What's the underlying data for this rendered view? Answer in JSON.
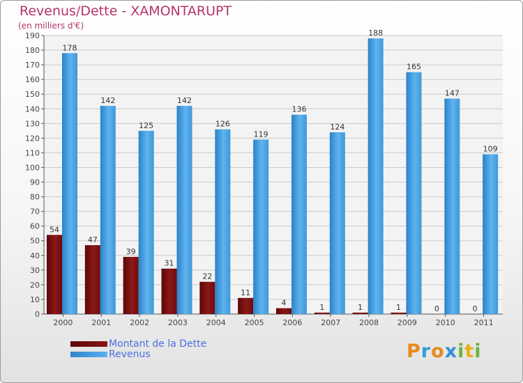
{
  "chart_data": {
    "type": "bar",
    "title": "Revenus/Dette - XAMONTARUPT",
    "subtitle": "(en milliers d'€)",
    "categories": [
      "2000",
      "2001",
      "2002",
      "2003",
      "2004",
      "2005",
      "2006",
      "2007",
      "2008",
      "2009",
      "2010",
      "2011"
    ],
    "series": [
      {
        "name": "Montant de la Dette",
        "color": "#7a0d0d",
        "values": [
          54,
          47,
          39,
          31,
          22,
          11,
          4,
          1,
          1,
          1,
          0,
          0
        ]
      },
      {
        "name": "Revenus",
        "color": "#4aa3e3",
        "values": [
          178,
          142,
          125,
          142,
          126,
          119,
          136,
          124,
          188,
          165,
          147,
          109
        ]
      }
    ],
    "ylim": [
      0,
      190
    ],
    "yticks": [
      0,
      10,
      20,
      30,
      40,
      50,
      60,
      70,
      80,
      90,
      100,
      110,
      120,
      130,
      140,
      150,
      160,
      170,
      180,
      190
    ],
    "grid": true,
    "legend_position": "bottom-left"
  },
  "legend": {
    "debt_label": "Montant de la Dette",
    "revenue_label": "Revenus"
  },
  "logo": {
    "text": "Proxiti",
    "letters": [
      "P",
      "r",
      "o",
      "x",
      "i",
      "t",
      "i"
    ]
  }
}
